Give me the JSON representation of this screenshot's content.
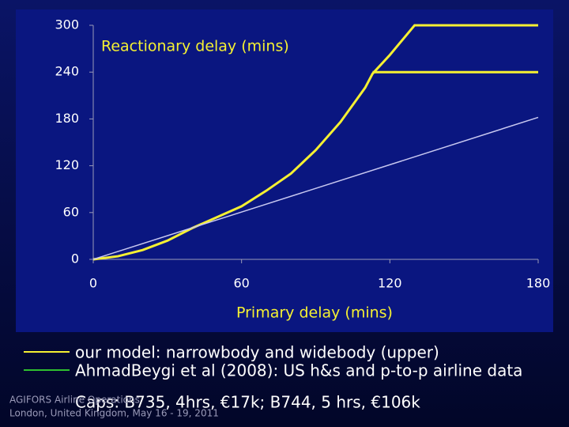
{
  "chart_data": {
    "type": "line",
    "title": "Reactionary delay (mins)",
    "x_label": "Primary delay (mins)",
    "xlim": [
      0,
      180
    ],
    "xticks": [
      0,
      60,
      120,
      180
    ],
    "ylim": [
      0,
      300
    ],
    "yticks": [
      0,
      60,
      120,
      180,
      240,
      300
    ],
    "series": [
      {
        "name": "our model: narrowbody and widebody (upper)",
        "color": "#f5f032",
        "legend_color": "#f5f032",
        "x": [
          0,
          10,
          20,
          30,
          40,
          50,
          60,
          70,
          80,
          90,
          100,
          110,
          113,
          120,
          130,
          180
        ],
        "values": [
          0,
          4,
          12,
          24,
          40,
          54,
          68,
          88,
          110,
          140,
          176,
          220,
          238,
          262,
          300,
          300
        ]
      },
      {
        "name": "AhmadBeygi et al (2008): US h&s and p-to-p airline data",
        "color": "#c8c8f0",
        "legend_color": "#2fc02f",
        "x": [
          0,
          180
        ],
        "values": [
          0,
          182
        ]
      },
      {
        "color": "#f5f032",
        "x": [
          113,
          180
        ],
        "values": [
          240,
          240
        ]
      }
    ]
  },
  "caps": "Caps: B735, 4hrs, €17k; B744, 5 hrs, €106k",
  "footer": [
    "AGIFORS Airline Operations",
    "London, United Kingdom, May 16 - 19, 2011"
  ]
}
